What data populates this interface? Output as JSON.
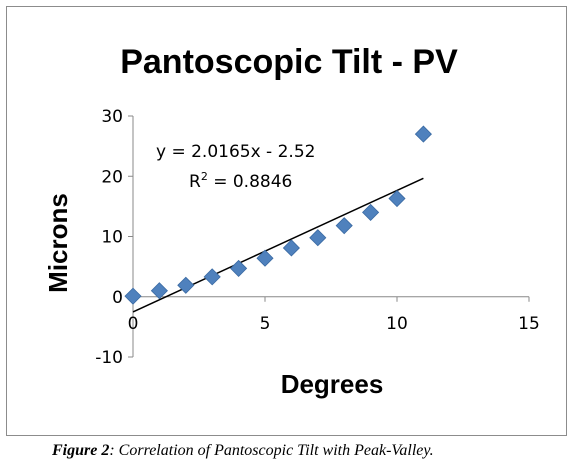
{
  "chart_data": {
    "type": "scatter",
    "title": "Pantoscopic Tilt - PV",
    "xlabel": "Degrees",
    "ylabel": "Microns",
    "xlim": [
      0,
      15
    ],
    "ylim": [
      -10,
      30
    ],
    "x_ticks": [
      0,
      5,
      10,
      15
    ],
    "y_ticks": [
      -10,
      0,
      10,
      20,
      30
    ],
    "grid": false,
    "marker_color": "#4f81bd",
    "trendline_color": "#000000",
    "series": [
      {
        "x": [
          0,
          1,
          2,
          3,
          4,
          5,
          6,
          7,
          8,
          9,
          10,
          11
        ],
        "values": [
          0.1,
          1.0,
          1.9,
          3.3,
          4.7,
          6.4,
          8.1,
          9.8,
          11.8,
          14.0,
          16.3,
          27.0
        ]
      }
    ],
    "trendline": {
      "slope": 2.0165,
      "intercept": -2.52,
      "x_range": [
        0,
        11
      ]
    },
    "annotations": {
      "equation": "y = 2.0165x - 2.52",
      "r2_prefix": "R",
      "r2_sup": "2",
      "r2_value": " = 0.8846"
    }
  },
  "caption": {
    "label": "Figure 2",
    "text": ": Correlation of Pantoscopic Tilt with Peak-Valley."
  }
}
